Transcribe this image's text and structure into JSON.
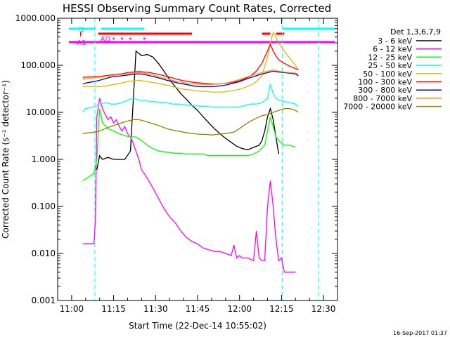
{
  "chart_data": {
    "type": "line",
    "title": "HESSI Observing Summary Count Rates, Corrected",
    "xlabel": "Start Time (22-Dec-14 10:55:02)",
    "ylabel": "Corrected Count Rate (s⁻¹ detector⁻¹)",
    "yscale": "log",
    "ylim": [
      0.001,
      1000
    ],
    "xlim": [
      -5,
      95
    ],
    "x_unit": "minutes after 11:00",
    "xticks": [
      "11:00",
      "11:15",
      "11:30",
      "11:45",
      "12:00",
      "12:15",
      "12:30"
    ],
    "yticks": [
      "0.001",
      "0.010",
      "0.100",
      "1.000",
      "10.000",
      "100.000",
      "1000.000"
    ],
    "grid": false,
    "legend_title": "Det 1,3,6,7,9",
    "legend_position": "right",
    "timestamp": "16-Sep-2017 01:37",
    "vlines": [
      {
        "x": 8.3,
        "color": "#00ffff"
      },
      {
        "x": 75.3,
        "color": "#00ffff"
      },
      {
        "x": 88.3,
        "color": "#00ffff"
      }
    ],
    "flags": [
      {
        "label": "N",
        "color": "#00ffff",
        "segments": [
          [
            -1,
            8.5
          ],
          [
            10.5,
            26
          ],
          [
            75.5,
            94
          ]
        ]
      },
      {
        "label": "F",
        "color": "#ff0000",
        "segments": [
          [
            9.5,
            43
          ],
          [
            68,
            71
          ],
          [
            73,
            76
          ]
        ]
      },
      {
        "label": "AD",
        "color": "#ff00ff",
        "segments": [],
        "dots": [
          15,
          18,
          21,
          26
        ]
      },
      {
        "label": "A1",
        "color": "#ff00ff",
        "segments": [
          [
            -1,
            94
          ]
        ]
      }
    ],
    "series": [
      {
        "name": "3 - 6 keV",
        "color": "#000000",
        "x": [
          9,
          10,
          11,
          13,
          15,
          17,
          19,
          21,
          23,
          25,
          27,
          29,
          31,
          33,
          35,
          37,
          39,
          41,
          43,
          45,
          47,
          49,
          51,
          53,
          55,
          57,
          59,
          61,
          63,
          65,
          67,
          68,
          69,
          70,
          71,
          72,
          73,
          74
        ],
        "values": [
          0.6,
          1.2,
          1.0,
          1.1,
          1.0,
          1.0,
          1.0,
          1.5,
          200,
          160,
          170,
          150,
          110,
          75,
          50,
          35,
          25,
          19,
          14,
          11,
          8,
          6,
          4.5,
          3.5,
          2.8,
          2.3,
          1.9,
          1.7,
          1.6,
          1.8,
          2.0,
          2.5,
          4,
          8,
          12,
          7,
          3,
          1.3
        ]
      },
      {
        "name": "6 - 12 keV",
        "color": "#ff00ff",
        "x": [
          4,
          8,
          8.5,
          9,
          10,
          11,
          12,
          13,
          14,
          15,
          16,
          17,
          18,
          19,
          20,
          21,
          22,
          23,
          24,
          25,
          27,
          29,
          31,
          33,
          35,
          37,
          39,
          41,
          43,
          45,
          47,
          49,
          51,
          53,
          55,
          57,
          58,
          59,
          60,
          61,
          63,
          65,
          66,
          67,
          68,
          69,
          70,
          71,
          72,
          73,
          74,
          75,
          76,
          77,
          80
        ],
        "values": [
          0.016,
          0.016,
          0.05,
          8,
          20,
          12,
          9,
          7,
          8,
          6,
          7,
          5,
          4,
          5,
          3.5,
          3,
          2.2,
          1.5,
          1.0,
          0.6,
          0.4,
          0.25,
          0.15,
          0.09,
          0.06,
          0.045,
          0.03,
          0.022,
          0.018,
          0.016,
          0.013,
          0.012,
          0.011,
          0.011,
          0.01,
          0.009,
          0.015,
          0.008,
          0.009,
          0.008,
          0.008,
          0.007,
          0.03,
          0.008,
          0.007,
          0.007,
          0.1,
          0.35,
          0.1,
          0.02,
          0.007,
          0.008,
          0.004,
          0.004,
          0.004
        ]
      },
      {
        "name": "12 - 25 keV",
        "color": "#00ff00",
        "x": [
          4,
          8,
          9,
          10,
          11,
          13,
          15,
          17,
          19,
          21,
          23,
          25,
          27,
          29,
          31,
          33,
          35,
          37,
          39,
          41,
          43,
          45,
          47,
          49,
          51,
          53,
          55,
          57,
          59,
          61,
          63,
          65,
          67,
          69,
          70,
          71,
          72,
          73,
          74,
          76,
          78,
          80
        ],
        "values": [
          0.35,
          0.5,
          1.0,
          12,
          6,
          4.5,
          4,
          3.5,
          3.2,
          3,
          3,
          2.5,
          2,
          1.7,
          1.5,
          1.45,
          1.4,
          1.35,
          1.35,
          1.3,
          1.3,
          1.3,
          1.3,
          1.2,
          1.2,
          1.2,
          1.2,
          1.2,
          1.2,
          1.2,
          1.2,
          1.3,
          1.5,
          2,
          4,
          8,
          5,
          3,
          2.5,
          2,
          2,
          1.8
        ]
      },
      {
        "name": "25 - 50 keV",
        "color": "#00ffff",
        "x": [
          4,
          5,
          8,
          9,
          10,
          12,
          14,
          16,
          18,
          20,
          22,
          24,
          26,
          28,
          30,
          32,
          34,
          36,
          38,
          40,
          42,
          44,
          46,
          48,
          50,
          52,
          54,
          56,
          58,
          60,
          62,
          64,
          66,
          68,
          70,
          71,
          72,
          73,
          74,
          76,
          78,
          80,
          81
        ],
        "values": [
          10,
          12,
          13,
          14,
          15,
          16,
          15,
          15,
          16,
          18,
          20,
          18,
          18,
          17,
          17,
          16,
          16,
          15,
          15,
          14.5,
          14,
          14,
          13.5,
          13.5,
          13,
          13,
          13,
          13,
          13,
          13,
          14,
          15,
          15,
          16,
          20,
          40,
          25,
          20,
          18,
          17,
          16,
          15,
          13
        ]
      },
      {
        "name": "50 - 100 keV",
        "color": "#ddbb00",
        "x": [
          4,
          5,
          8,
          10,
          12,
          14,
          16,
          18,
          20,
          22,
          24,
          26,
          28,
          30,
          32,
          34,
          36,
          38,
          40,
          42,
          44,
          46,
          48,
          50,
          52,
          54,
          56,
          58,
          60,
          62,
          64,
          66,
          68,
          70,
          71,
          72,
          73,
          74,
          76,
          78,
          80,
          81
        ],
        "values": [
          35,
          36,
          35,
          35,
          36,
          38,
          40,
          42,
          45,
          47,
          48,
          46,
          44,
          42,
          40,
          38,
          35,
          33,
          31,
          30,
          29,
          28,
          28,
          27,
          27,
          27,
          28,
          29,
          31,
          34,
          38,
          45,
          60,
          150,
          300,
          500,
          400,
          300,
          200,
          140,
          100,
          80
        ]
      },
      {
        "name": "100 - 300 keV",
        "color": "#ff0000",
        "x": [
          4,
          5,
          8,
          10,
          12,
          14,
          16,
          18,
          20,
          22,
          24,
          26,
          28,
          30,
          32,
          34,
          36,
          38,
          40,
          42,
          44,
          46,
          48,
          50,
          52,
          54,
          56,
          58,
          60,
          62,
          64,
          66,
          68,
          70,
          71,
          72,
          73,
          74,
          76,
          78,
          80,
          81
        ],
        "values": [
          55,
          56,
          57,
          58,
          60,
          62,
          64,
          66,
          70,
          72,
          74,
          72,
          70,
          66,
          62,
          58,
          54,
          50,
          47,
          45,
          43,
          42,
          41,
          40,
          40,
          41,
          42,
          44,
          47,
          52,
          60,
          75,
          110,
          200,
          280,
          200,
          160,
          130,
          110,
          95,
          85,
          80
        ]
      },
      {
        "name": "300 - 800 keV",
        "color": "#0000cc",
        "x": [
          4,
          5,
          8,
          10,
          12,
          14,
          16,
          18,
          20,
          22,
          24,
          26,
          28,
          30,
          32,
          34,
          36,
          38,
          40,
          42,
          44,
          46,
          48,
          50,
          52,
          54,
          56,
          58,
          60,
          62,
          64,
          66,
          68,
          70,
          72,
          74,
          76,
          78,
          80,
          81
        ],
        "values": [
          40,
          42,
          45,
          48,
          52,
          56,
          58,
          60,
          62,
          64,
          66,
          64,
          60,
          56,
          52,
          48,
          45,
          42,
          40,
          38,
          36,
          35,
          35,
          35,
          36,
          37,
          39,
          42,
          45,
          50,
          55,
          60,
          65,
          70,
          75,
          72,
          70,
          68,
          65,
          60
        ]
      },
      {
        "name": "800 - 7000 keV",
        "color": "#ff9900",
        "x": [
          4,
          5,
          8,
          10,
          12,
          14,
          16,
          18,
          20,
          22,
          24,
          26,
          28,
          30,
          32,
          34,
          36,
          38,
          40,
          42,
          44,
          46,
          48,
          50,
          52,
          54,
          56,
          58,
          60,
          62,
          64,
          66,
          68,
          70,
          72,
          74,
          76,
          78,
          80,
          81
        ],
        "values": [
          50,
          52,
          54,
          56,
          58,
          60,
          62,
          64,
          66,
          68,
          70,
          68,
          65,
          60,
          55,
          52,
          48,
          45,
          43,
          41,
          40,
          39,
          39,
          39,
          40,
          41,
          43,
          46,
          50,
          55,
          60,
          65,
          70,
          75,
          80,
          75,
          72,
          70,
          68,
          65
        ]
      },
      {
        "name": "7000 - 20000 keV",
        "color": "#888800",
        "x": [
          4,
          5,
          8,
          10,
          12,
          14,
          16,
          18,
          20,
          22,
          24,
          26,
          28,
          30,
          32,
          34,
          36,
          38,
          40,
          42,
          44,
          46,
          48,
          50,
          52,
          54,
          56,
          58,
          60,
          62,
          64,
          66,
          68,
          70,
          72,
          74,
          76,
          78,
          80,
          81
        ],
        "values": [
          3.5,
          3.6,
          3.8,
          4,
          4.5,
          5,
          5.5,
          6,
          6.5,
          7,
          7,
          6.5,
          6,
          5.5,
          5,
          4.5,
          4.2,
          4,
          3.8,
          3.6,
          3.5,
          3.4,
          3.4,
          3.3,
          3.4,
          3.5,
          3.6,
          3.8,
          4.5,
          5.5,
          6.5,
          7.5,
          8.5,
          9,
          10,
          11,
          12,
          12,
          11,
          10
        ]
      }
    ]
  }
}
